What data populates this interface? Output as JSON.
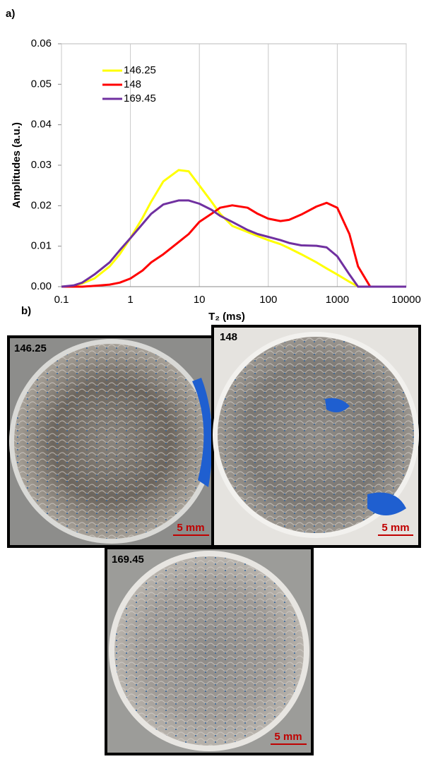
{
  "panel_labels": [
    "a)",
    "b)"
  ],
  "chart_data": {
    "type": "line",
    "y_label": "Amplitudes (a.u.)",
    "x_label": "T₂ (ms)",
    "x": [
      0.1,
      0.15,
      0.2,
      0.3,
      0.5,
      0.7,
      1,
      1.5,
      2,
      3,
      5,
      7,
      10,
      15,
      20,
      30,
      50,
      70,
      100,
      150,
      200,
      300,
      500,
      700,
      1000,
      1500,
      2000,
      3000,
      5000,
      10000
    ],
    "series": [
      {
        "name": "146.25",
        "color": "#ffff00",
        "values": [
          0,
          0.0002,
          0.0008,
          0.002,
          0.005,
          0.008,
          0.012,
          0.017,
          0.021,
          0.026,
          0.0288,
          0.0285,
          0.025,
          0.021,
          0.018,
          0.015,
          0.0135,
          0.0125,
          0.0115,
          0.0105,
          0.0095,
          0.008,
          0.006,
          0.0045,
          0.003,
          0.0012,
          0,
          0,
          0,
          0
        ]
      },
      {
        "name": "148",
        "color": "#ff0000",
        "values": [
          0,
          0,
          0,
          0.0002,
          0.0005,
          0.001,
          0.002,
          0.004,
          0.006,
          0.008,
          0.011,
          0.013,
          0.016,
          0.018,
          0.0195,
          0.0201,
          0.0195,
          0.018,
          0.0168,
          0.0162,
          0.0165,
          0.0178,
          0.0198,
          0.0207,
          0.0195,
          0.013,
          0.005,
          0,
          0,
          0
        ]
      },
      {
        "name": "169.45",
        "color": "#7030a0",
        "values": [
          0,
          0.0003,
          0.001,
          0.003,
          0.006,
          0.009,
          0.012,
          0.0155,
          0.018,
          0.0203,
          0.0213,
          0.0213,
          0.0205,
          0.019,
          0.0175,
          0.016,
          0.014,
          0.013,
          0.0123,
          0.0115,
          0.0108,
          0.0102,
          0.0101,
          0.0097,
          0.0075,
          0.003,
          0,
          0,
          0,
          0
        ]
      }
    ],
    "xlim": [
      0.1,
      10000
    ],
    "xticks": [
      0.1,
      1,
      10,
      100,
      1000,
      10000
    ],
    "xscale": "log",
    "ylim": [
      0,
      0.06
    ],
    "yticks": [
      {
        "value": 0,
        "label": "0.00"
      },
      0.01,
      0.02,
      0.03,
      0.04,
      0.05,
      0.06
    ],
    "grid": "x",
    "legend": "upper left"
  },
  "samples": [
    {
      "label": "146.25",
      "scale": "5 mm"
    },
    {
      "label": "148",
      "scale": "5 mm"
    },
    {
      "label": "169.45",
      "scale": "5 mm"
    }
  ]
}
